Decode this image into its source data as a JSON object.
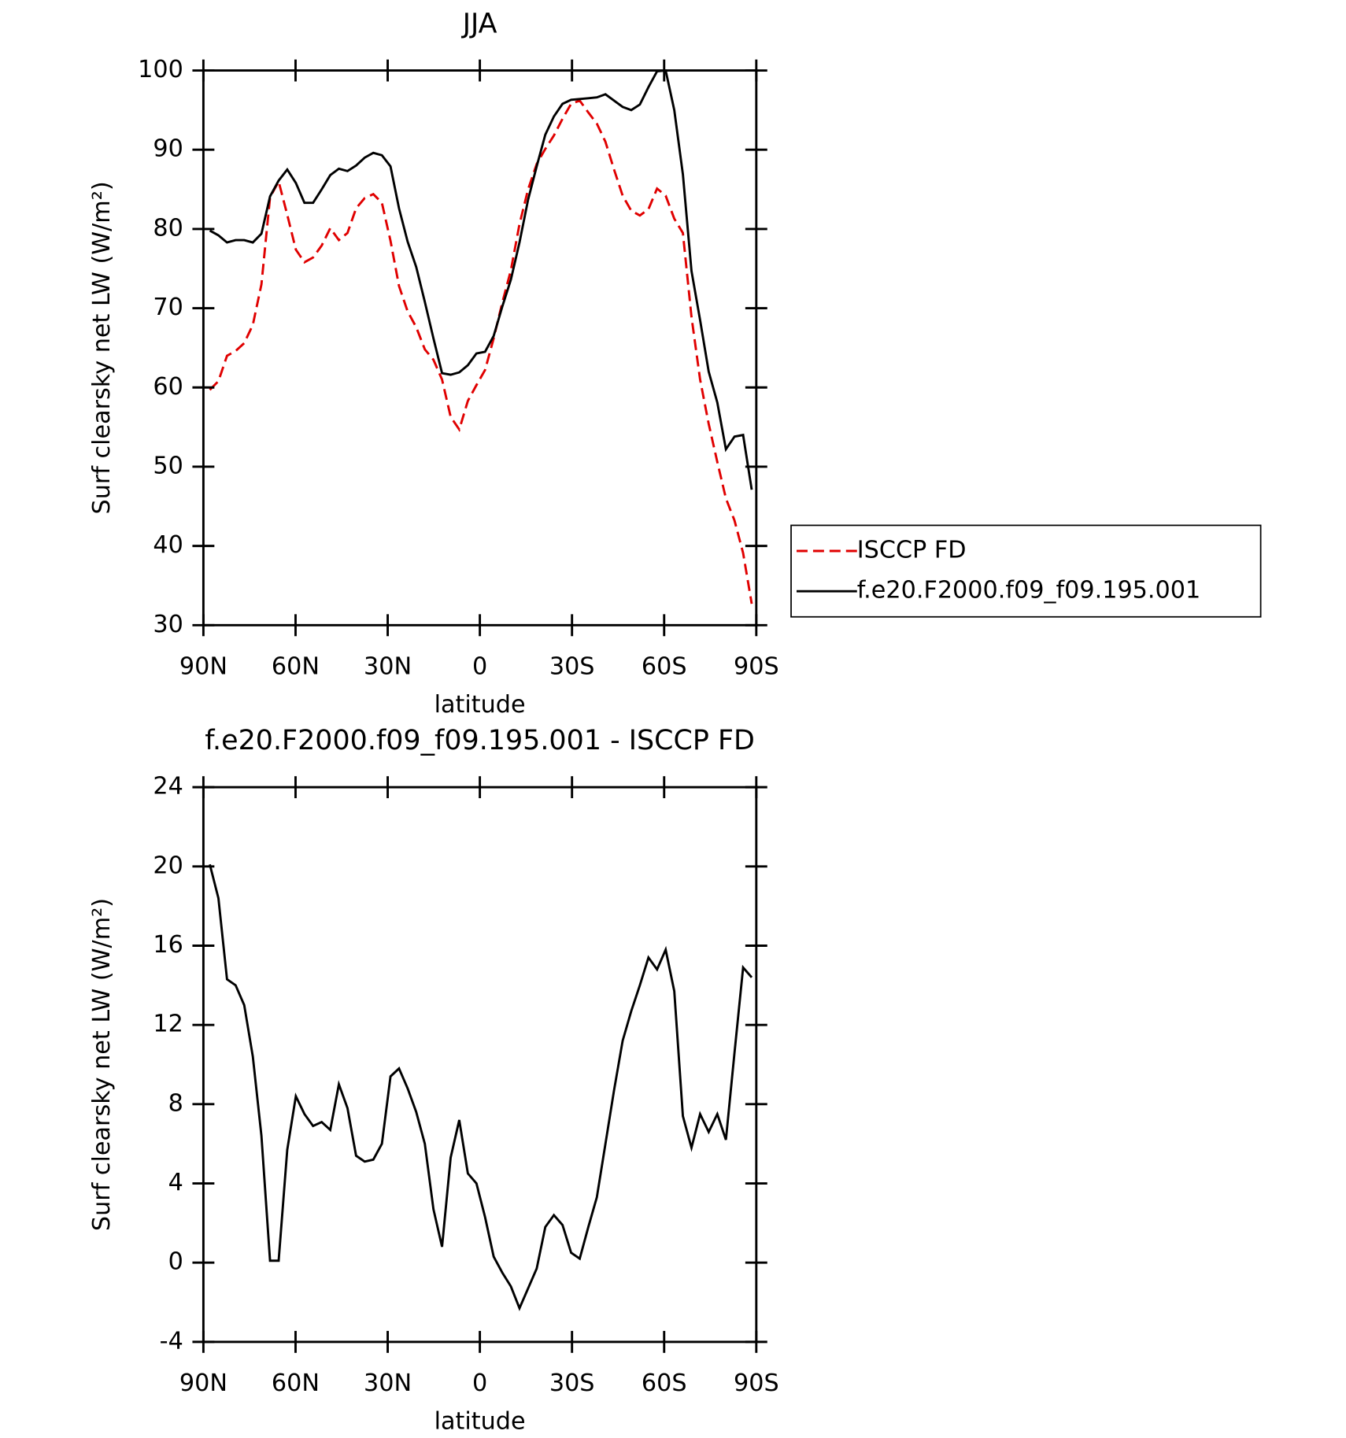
{
  "chart_data": [
    {
      "type": "line",
      "title": "JJA",
      "xlabel": "latitude",
      "ylabel": "Surf clearsky net LW (W/m²)",
      "x": [
        87.9,
        85.1,
        82.3,
        79.5,
        76.7,
        73.9,
        71.1,
        68.3,
        65.5,
        62.7,
        59.9,
        57.1,
        54.3,
        51.5,
        48.7,
        45.9,
        43.1,
        40.3,
        37.5,
        34.7,
        31.9,
        29.1,
        26.3,
        23.5,
        20.7,
        17.9,
        15.1,
        12.3,
        9.5,
        6.7,
        3.9,
        1.1,
        -1.7,
        -4.5,
        -7.3,
        -10.1,
        -12.9,
        -15.7,
        -18.5,
        -21.3,
        -24.1,
        -26.9,
        -29.7,
        -32.5,
        -35.3,
        -38.1,
        -40.9,
        -43.7,
        -46.5,
        -49.3,
        -52.1,
        -54.9,
        -57.7,
        -60.5,
        -63.3,
        -66.1,
        -68.9,
        -71.7,
        -74.5,
        -77.3,
        -80.1,
        -82.9,
        -85.7,
        -88.5
      ],
      "series": [
        {
          "name": "ISCCP FD",
          "color": "#e00000",
          "dashed": true,
          "values": [
            59.7,
            60.8,
            64.0,
            64.6,
            65.6,
            67.9,
            73.0,
            84.0,
            86.0,
            81.8,
            77.4,
            75.8,
            76.4,
            77.9,
            80.1,
            78.6,
            79.5,
            82.6,
            83.9,
            84.4,
            83.3,
            78.5,
            72.8,
            69.6,
            67.6,
            64.8,
            63.5,
            61.0,
            56.3,
            54.7,
            58.3,
            60.3,
            62.2,
            66.2,
            70.7,
            74.8,
            80.6,
            85.0,
            88.2,
            90.1,
            91.8,
            93.9,
            95.8,
            96.2,
            94.7,
            93.3,
            91.0,
            87.5,
            84.2,
            82.3,
            81.7,
            82.5,
            85.1,
            84.2,
            81.3,
            79.5,
            68.9,
            61.0,
            55.4,
            50.6,
            46.0,
            43.2,
            39.1,
            32.7
          ]
        },
        {
          "name": "f.e20.F2000.f09_f09.195.001",
          "color": "#000000",
          "dashed": false,
          "values": [
            79.8,
            79.2,
            78.3,
            78.6,
            78.6,
            78.3,
            79.4,
            84.1,
            86.1,
            87.5,
            85.8,
            83.3,
            83.3,
            85.0,
            86.8,
            87.6,
            87.3,
            88.0,
            89.0,
            89.6,
            89.3,
            87.9,
            82.6,
            78.4,
            75.2,
            70.8,
            66.2,
            61.8,
            61.6,
            61.9,
            62.8,
            64.3,
            64.5,
            66.5,
            70.2,
            73.6,
            78.3,
            83.7,
            87.9,
            91.9,
            94.2,
            95.8,
            96.3,
            96.4,
            96.5,
            96.6,
            97.0,
            96.2,
            95.4,
            95.0,
            95.7,
            97.9,
            99.9,
            100.0,
            95.0,
            86.9,
            74.7,
            68.5,
            62.0,
            58.1,
            52.2,
            53.8,
            54.0,
            47.1
          ]
        }
      ],
      "xlim": [
        90,
        -90
      ],
      "xticks": [
        {
          "value": 90,
          "label": "90N"
        },
        {
          "value": 60,
          "label": "60N"
        },
        {
          "value": 30,
          "label": "30N"
        },
        0,
        {
          "value": -30,
          "label": "30S"
        },
        {
          "value": -60,
          "label": "60S"
        },
        {
          "value": -90,
          "label": "90S"
        }
      ],
      "ylim": [
        30,
        100
      ],
      "yticks": [
        30,
        40,
        50,
        60,
        70,
        80,
        90,
        100
      ],
      "grid": false,
      "legend": "right"
    },
    {
      "type": "line",
      "title": "f.e20.F2000.f09_f09.195.001 - ISCCP FD",
      "xlabel": "latitude",
      "ylabel": "Surf clearsky net LW (W/m²)",
      "x": [
        87.9,
        85.1,
        82.3,
        79.5,
        76.7,
        73.9,
        71.1,
        68.3,
        65.5,
        62.7,
        59.9,
        57.1,
        54.3,
        51.5,
        48.7,
        45.9,
        43.1,
        40.3,
        37.5,
        34.7,
        31.9,
        29.1,
        26.3,
        23.5,
        20.7,
        17.9,
        15.1,
        12.3,
        9.5,
        6.7,
        3.9,
        1.1,
        -1.7,
        -4.5,
        -7.3,
        -10.1,
        -12.9,
        -15.7,
        -18.5,
        -21.3,
        -24.1,
        -26.9,
        -29.7,
        -32.5,
        -35.3,
        -38.1,
        -40.9,
        -43.7,
        -46.5,
        -49.3,
        -52.1,
        -54.9,
        -57.7,
        -60.5,
        -63.3,
        -66.1,
        -68.9,
        -71.7,
        -74.5,
        -77.3,
        -80.1,
        -82.9,
        -85.7,
        -88.5
      ],
      "color": "#000000",
      "values": [
        20.1,
        18.4,
        14.3,
        14.0,
        13.0,
        10.4,
        6.4,
        0.1,
        0.1,
        5.7,
        8.4,
        7.5,
        6.9,
        7.1,
        6.7,
        9.0,
        7.8,
        5.4,
        5.1,
        5.2,
        6.0,
        9.4,
        9.8,
        8.8,
        7.6,
        6.0,
        2.7,
        0.8,
        5.3,
        7.2,
        4.5,
        4.0,
        2.3,
        0.3,
        -0.5,
        -1.2,
        -2.3,
        -1.3,
        -0.3,
        1.8,
        2.4,
        1.9,
        0.5,
        0.2,
        1.8,
        3.3,
        6.0,
        8.7,
        11.2,
        12.7,
        14.0,
        15.4,
        14.8,
        15.8,
        13.7,
        7.4,
        5.8,
        7.5,
        6.6,
        7.5,
        6.2,
        10.6,
        14.9,
        14.4
      ],
      "xlim": [
        90,
        -90
      ],
      "xticks": [
        {
          "value": 90,
          "label": "90N"
        },
        {
          "value": 60,
          "label": "60N"
        },
        {
          "value": 30,
          "label": "30N"
        },
        0,
        {
          "value": -30,
          "label": "30S"
        },
        {
          "value": -60,
          "label": "60S"
        },
        {
          "value": -90,
          "label": "90S"
        }
      ],
      "ylim": [
        -4,
        24
      ],
      "yticks": [
        -4,
        0,
        4,
        8,
        12,
        16,
        20,
        24
      ],
      "grid": false
    }
  ]
}
